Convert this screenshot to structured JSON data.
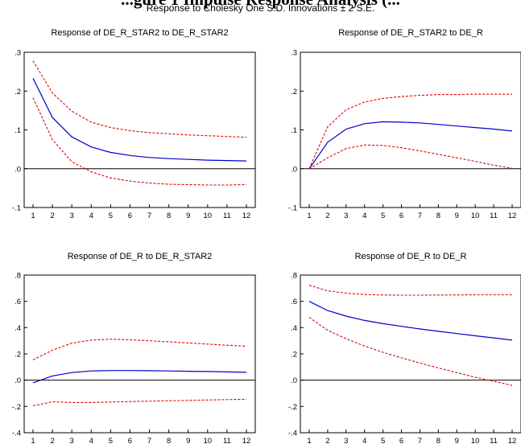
{
  "figure": {
    "heading": "...gure 1 Impulse Response Analysis (...",
    "subtitle": "Response to Cholesky One S.D. Innovations ± 2 S.E."
  },
  "colors": {
    "response": "#0000cc",
    "band": "#dd0000",
    "axis": "#000000"
  },
  "chart_data": [
    {
      "type": "line",
      "title": "Response of DE_R_STAR2 to DE_R_STAR2",
      "x": [
        1,
        2,
        3,
        4,
        5,
        6,
        7,
        8,
        9,
        10,
        11,
        12
      ],
      "ylim": [
        -0.1,
        0.3
      ],
      "yticks": [
        ".3",
        ".2",
        ".1",
        ".0",
        "-.1"
      ],
      "ytick_values": [
        0.3,
        0.2,
        0.1,
        0.0,
        -0.1
      ],
      "xtick_labels": [
        "1",
        "2",
        "3",
        "4",
        "5",
        "6",
        "7",
        "8",
        "9",
        "10",
        "11",
        "12"
      ],
      "series": [
        {
          "role": "response",
          "values": [
            0.233,
            0.132,
            0.082,
            0.056,
            0.042,
            0.034,
            0.029,
            0.026,
            0.024,
            0.022,
            0.021,
            0.02
          ]
        },
        {
          "role": "upper",
          "values": [
            0.278,
            0.195,
            0.148,
            0.12,
            0.106,
            0.098,
            0.093,
            0.09,
            0.087,
            0.085,
            0.083,
            0.081
          ]
        },
        {
          "role": "lower",
          "values": [
            0.183,
            0.075,
            0.018,
            -0.008,
            -0.024,
            -0.032,
            -0.037,
            -0.04,
            -0.041,
            -0.042,
            -0.042,
            -0.041
          ]
        }
      ]
    },
    {
      "type": "line",
      "title": "Response of DE_R_STAR2 to DE_R",
      "x": [
        1,
        2,
        3,
        4,
        5,
        6,
        7,
        8,
        9,
        10,
        11,
        12
      ],
      "ylim": [
        -0.1,
        0.3
      ],
      "yticks": [
        ".3",
        ".2",
        ".1",
        ".0",
        "-.1"
      ],
      "ytick_values": [
        0.3,
        0.2,
        0.1,
        0.0,
        -0.1
      ],
      "xtick_labels": [
        "1",
        "2",
        "3",
        "4",
        "5",
        "6",
        "7",
        "8",
        "9",
        "10",
        "11",
        "12"
      ],
      "series": [
        {
          "role": "response",
          "values": [
            0.0,
            0.068,
            0.102,
            0.116,
            0.121,
            0.12,
            0.118,
            0.114,
            0.11,
            0.106,
            0.102,
            0.097
          ]
        },
        {
          "role": "upper",
          "values": [
            0.0,
            0.108,
            0.152,
            0.172,
            0.181,
            0.186,
            0.189,
            0.191,
            0.191,
            0.192,
            0.192,
            0.192
          ]
        },
        {
          "role": "lower",
          "values": [
            0.0,
            0.028,
            0.052,
            0.061,
            0.06,
            0.054,
            0.046,
            0.037,
            0.028,
            0.019,
            0.009,
            0.001
          ]
        }
      ]
    },
    {
      "type": "line",
      "title": "Response of DE_R to DE_R_STAR2",
      "x": [
        1,
        2,
        3,
        4,
        5,
        6,
        7,
        8,
        9,
        10,
        11,
        12
      ],
      "ylim": [
        -0.4,
        0.8
      ],
      "yticks": [
        ".8",
        ".6",
        ".4",
        ".2",
        ".0",
        "-.2",
        "-.4"
      ],
      "ytick_values": [
        0.8,
        0.6,
        0.4,
        0.2,
        0.0,
        -0.2,
        -0.4
      ],
      "xtick_labels": [
        "1",
        "2",
        "3",
        "4",
        "5",
        "6",
        "7",
        "8",
        "9",
        "10",
        "11",
        "12"
      ],
      "series": [
        {
          "role": "response",
          "values": [
            -0.02,
            0.032,
            0.058,
            0.07,
            0.073,
            0.073,
            0.072,
            0.07,
            0.068,
            0.066,
            0.063,
            0.06
          ]
        },
        {
          "role": "upper",
          "values": [
            0.155,
            0.228,
            0.282,
            0.305,
            0.312,
            0.308,
            0.3,
            0.292,
            0.284,
            0.275,
            0.266,
            0.258
          ]
        },
        {
          "role": "lower",
          "values": [
            -0.195,
            -0.165,
            -0.17,
            -0.17,
            -0.167,
            -0.163,
            -0.16,
            -0.157,
            -0.154,
            -0.151,
            -0.148,
            -0.145
          ]
        }
      ]
    },
    {
      "type": "line",
      "title": "Response of DE_R to DE_R",
      "x": [
        1,
        2,
        3,
        4,
        5,
        6,
        7,
        8,
        9,
        10,
        11,
        12
      ],
      "ylim": [
        -0.4,
        0.8
      ],
      "yticks": [
        ".8",
        ".6",
        ".4",
        ".2",
        ".0",
        "-.2",
        "-.4"
      ],
      "ytick_values": [
        0.8,
        0.6,
        0.4,
        0.2,
        0.0,
        -0.2,
        -0.4
      ],
      "xtick_labels": [
        "1",
        "2",
        "3",
        "4",
        "5",
        "6",
        "7",
        "8",
        "9",
        "10",
        "11",
        "12"
      ],
      "series": [
        {
          "role": "response",
          "values": [
            0.6,
            0.53,
            0.488,
            0.455,
            0.43,
            0.41,
            0.39,
            0.372,
            0.355,
            0.338,
            0.322,
            0.305
          ]
        },
        {
          "role": "upper",
          "values": [
            0.722,
            0.68,
            0.662,
            0.652,
            0.648,
            0.647,
            0.647,
            0.648,
            0.649,
            0.65,
            0.65,
            0.65
          ]
        },
        {
          "role": "lower",
          "values": [
            0.478,
            0.38,
            0.315,
            0.26,
            0.212,
            0.17,
            0.13,
            0.093,
            0.058,
            0.022,
            -0.008,
            -0.04
          ]
        }
      ]
    }
  ]
}
